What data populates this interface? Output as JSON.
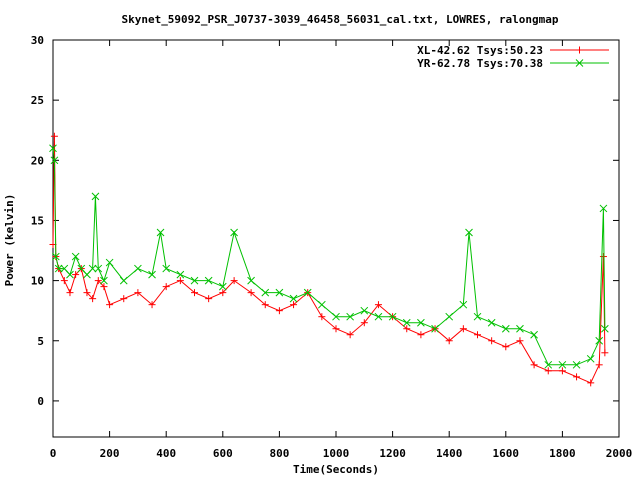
{
  "chart_data": {
    "type": "scatter",
    "title": "Skynet_59092_PSR_J0737-3039_46458_56031_cal.txt, LOWRES, ralongmap",
    "xlabel": "Time(Seconds)",
    "ylabel": "Power (kelvin)",
    "xlim": [
      0,
      2000
    ],
    "ylim": [
      -3,
      30
    ],
    "xticks": [
      0,
      200,
      400,
      600,
      800,
      1000,
      1200,
      1400,
      1600,
      1800,
      2000
    ],
    "yticks": [
      0,
      5,
      10,
      15,
      20,
      25,
      30
    ],
    "grid": false,
    "legend_position": "top-right",
    "series": [
      {
        "name": "XL-42.62 Tsys:50.23",
        "color": "#ff0000",
        "marker": "plus",
        "x": [
          0,
          5,
          10,
          20,
          40,
          60,
          80,
          100,
          120,
          140,
          160,
          180,
          200,
          250,
          300,
          350,
          400,
          450,
          500,
          550,
          600,
          640,
          700,
          750,
          800,
          850,
          900,
          950,
          1000,
          1050,
          1100,
          1150,
          1200,
          1250,
          1300,
          1350,
          1400,
          1450,
          1500,
          1550,
          1600,
          1650,
          1700,
          1750,
          1800,
          1850,
          1900,
          1930,
          1945,
          1950
        ],
        "y": [
          13,
          22,
          12,
          11,
          10,
          9,
          10.5,
          11,
          9,
          8.5,
          10,
          9.5,
          8,
          8.5,
          9,
          8,
          9.5,
          10,
          9,
          8.5,
          9,
          10,
          9,
          8,
          7.5,
          8,
          9,
          7,
          6,
          5.5,
          6.5,
          8,
          7,
          6,
          5.5,
          6,
          5,
          6,
          5.5,
          5,
          4.5,
          5,
          3,
          2.5,
          2.5,
          2,
          1.5,
          3,
          12,
          4
        ]
      },
      {
        "name": "YR-62.78 Tsys:70.38",
        "color": "#00c000",
        "marker": "cross",
        "x": [
          0,
          5,
          10,
          20,
          40,
          60,
          80,
          100,
          120,
          140,
          150,
          160,
          180,
          200,
          250,
          300,
          350,
          380,
          400,
          450,
          500,
          550,
          600,
          640,
          700,
          750,
          800,
          850,
          900,
          950,
          1000,
          1050,
          1100,
          1150,
          1200,
          1250,
          1300,
          1350,
          1400,
          1450,
          1470,
          1500,
          1550,
          1600,
          1650,
          1700,
          1750,
          1800,
          1850,
          1900,
          1930,
          1945,
          1950
        ],
        "y": [
          21,
          20,
          12,
          11,
          11,
          10.5,
          12,
          11,
          10.5,
          11,
          17,
          11,
          10,
          11.5,
          10,
          11,
          10.5,
          14,
          11,
          10.5,
          10,
          10,
          9.5,
          14,
          10,
          9,
          9,
          8.5,
          9,
          8,
          7,
          7,
          7.5,
          7,
          7,
          6.5,
          6.5,
          6,
          7,
          8,
          14,
          7,
          6.5,
          6,
          6,
          5.5,
          3,
          3,
          3,
          3.5,
          5,
          16,
          6
        ]
      }
    ]
  }
}
